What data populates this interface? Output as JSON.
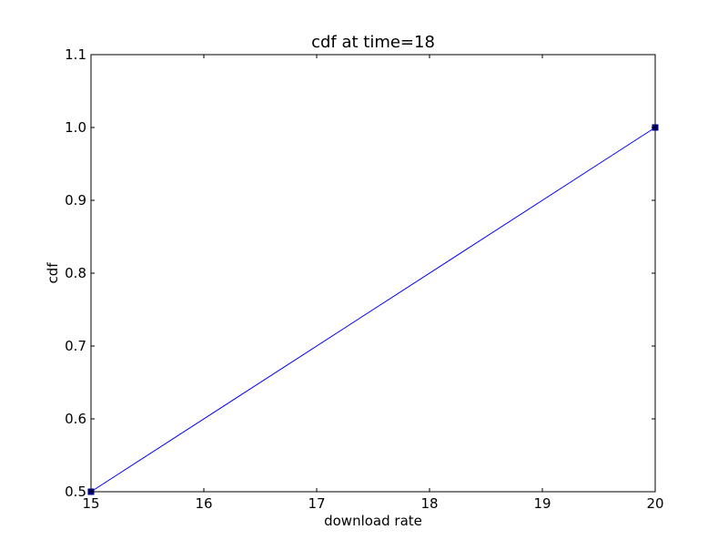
{
  "chart_data": {
    "type": "line",
    "title": "cdf at time=18",
    "xlabel": "download rate",
    "ylabel": "cdf",
    "xlim": [
      15,
      20
    ],
    "ylim": [
      0.5,
      1.1
    ],
    "x_ticks": [
      15,
      16,
      17,
      18,
      19,
      20
    ],
    "y_ticks": [
      0.5,
      0.6,
      0.7,
      0.8,
      0.9,
      1.0,
      1.1
    ],
    "x_tick_labels": [
      "15",
      "16",
      "17",
      "18",
      "19",
      "20"
    ],
    "y_tick_labels": [
      "0.5",
      "0.6",
      "0.7",
      "0.8",
      "0.9",
      "1.0",
      "1.1"
    ],
    "grid": false,
    "series": [
      {
        "x": [
          15,
          20
        ],
        "y": [
          0.5,
          1.0
        ],
        "color": "#0000ff",
        "marker": "square",
        "marker_color": "#000080"
      }
    ]
  }
}
